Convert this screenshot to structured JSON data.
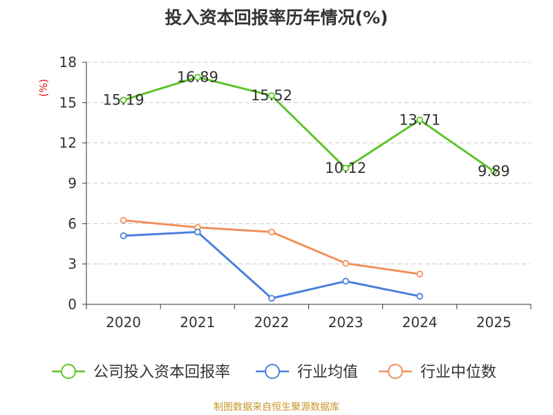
{
  "chart_data": {
    "type": "line",
    "title": "投入资本回报率历年情况(%)",
    "ylabel": "(%)",
    "categories": [
      "2020",
      "2021",
      "2022",
      "2023",
      "2024",
      "2025"
    ],
    "ylim": [
      0,
      18
    ],
    "yticks": [
      0,
      3,
      6,
      9,
      12,
      15,
      18
    ],
    "grid": true,
    "legend_position": "bottom",
    "series": [
      {
        "name": "公司投入资本回报率",
        "color": "#5cc427",
        "values": [
          15.19,
          16.89,
          15.52,
          10.12,
          13.71,
          9.89
        ],
        "labels": [
          "15.19",
          "16.89",
          "15.52",
          "10.12",
          "13.71",
          "9.89"
        ]
      },
      {
        "name": "行业均值",
        "color": "#4a7fdc",
        "values": [
          5.1,
          5.38,
          0.45,
          1.72,
          0.6,
          null
        ]
      },
      {
        "name": "行业中位数",
        "color": "#f0905a",
        "values": [
          6.25,
          5.72,
          5.38,
          3.05,
          2.25,
          null
        ]
      }
    ]
  },
  "footer": {
    "source": "制图数据来自恒生聚源数据库"
  }
}
